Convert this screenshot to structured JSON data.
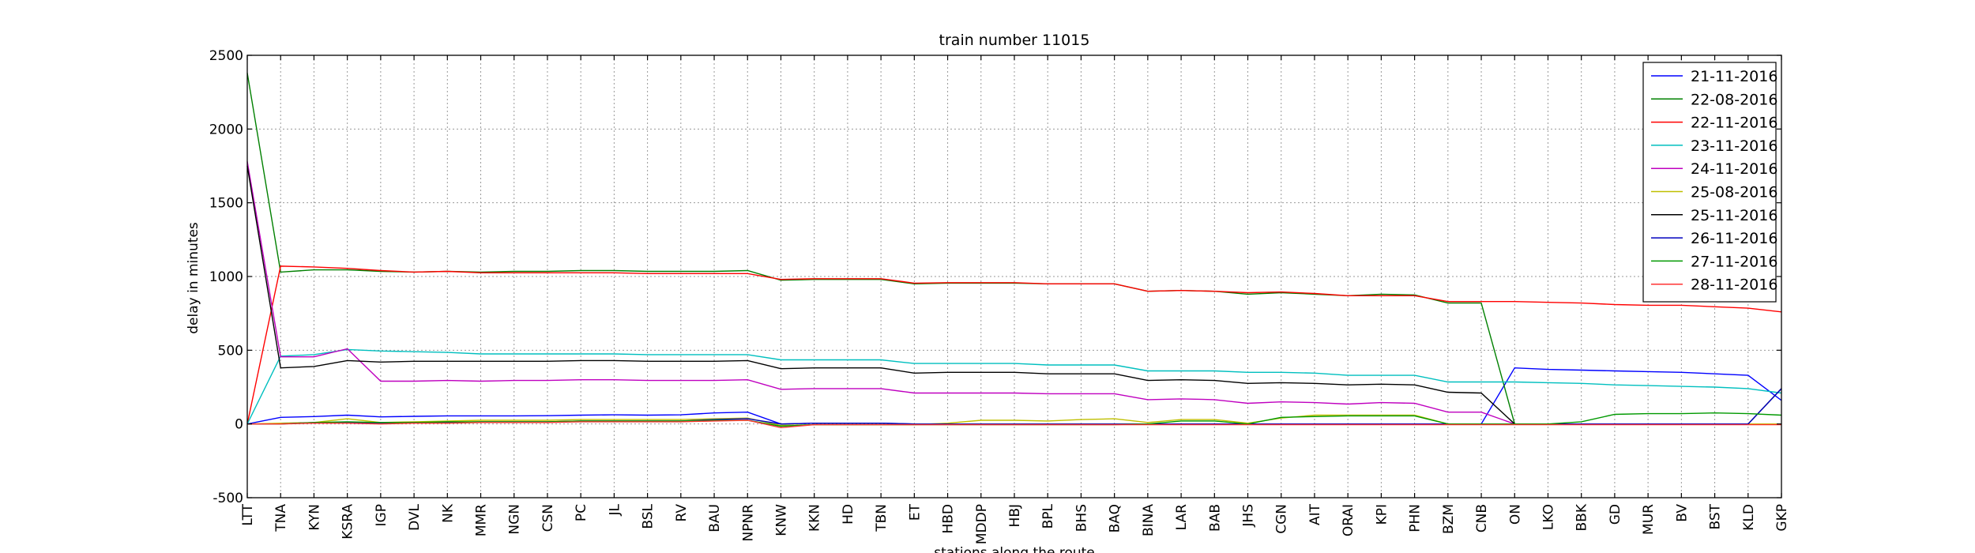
{
  "chart_data": {
    "type": "line",
    "title": "train number 11015",
    "xlabel": "stations along the route",
    "ylabel": "delay in minutes",
    "ylim": [
      -500,
      2500
    ],
    "yticks": [
      -500,
      0,
      500,
      1000,
      1500,
      2000,
      2500
    ],
    "grid": true,
    "legend_position": "top-right",
    "categories": [
      "LTT",
      "TNA",
      "KYN",
      "KSRA",
      "IGP",
      "DVL",
      "NK",
      "MMR",
      "NGN",
      "CSN",
      "PC",
      "JL",
      "BSL",
      "RV",
      "BAU",
      "NPNR",
      "KNW",
      "KKN",
      "HD",
      "TBN",
      "ET",
      "HBD",
      "MDDP",
      "HBJ",
      "BPL",
      "BHS",
      "BAQ",
      "BINA",
      "LAR",
      "BAB",
      "JHS",
      "CGN",
      "AIT",
      "ORAI",
      "KPI",
      "PHN",
      "BZM",
      "CNB",
      "ON",
      "LKO",
      "BBK",
      "GD",
      "MUR",
      "BV",
      "BST",
      "KLD",
      "GKP"
    ],
    "series": [
      {
        "name": "21-11-2016",
        "color": "#0000ff",
        "values": [
          0,
          45,
          50,
          60,
          48,
          52,
          55,
          55,
          55,
          56,
          60,
          62,
          60,
          62,
          75,
          80,
          0,
          5,
          5,
          5,
          0,
          0,
          0,
          0,
          0,
          0,
          0,
          0,
          0,
          0,
          0,
          0,
          0,
          0,
          0,
          0,
          0,
          0,
          380,
          370,
          365,
          360,
          355,
          350,
          340,
          330,
          160
        ]
      },
      {
        "name": "22-08-2016",
        "color": "#008000",
        "values": [
          2380,
          1030,
          1045,
          1045,
          1035,
          1030,
          1035,
          1030,
          1035,
          1035,
          1040,
          1040,
          1035,
          1035,
          1035,
          1040,
          975,
          980,
          980,
          980,
          950,
          955,
          955,
          955,
          950,
          950,
          950,
          900,
          905,
          900,
          880,
          890,
          880,
          870,
          880,
          875,
          820,
          820,
          0,
          0,
          0,
          0,
          0,
          0,
          0,
          0,
          0
        ]
      },
      {
        "name": "22-11-2016",
        "color": "#ff0000",
        "values": [
          0,
          1070,
          1065,
          1055,
          1040,
          1030,
          1035,
          1025,
          1025,
          1025,
          1025,
          1025,
          1020,
          1020,
          1020,
          1020,
          980,
          985,
          985,
          985,
          955,
          958,
          958,
          958,
          950,
          950,
          950,
          900,
          905,
          900,
          890,
          895,
          885,
          870,
          870,
          870,
          830,
          830,
          830,
          825,
          820,
          810,
          805,
          805,
          795,
          785,
          760
        ]
      },
      {
        "name": "23-11-2016",
        "color": "#00bfbf",
        "values": [
          0,
          460,
          470,
          505,
          495,
          490,
          485,
          475,
          475,
          475,
          475,
          475,
          470,
          470,
          470,
          470,
          435,
          435,
          435,
          435,
          410,
          410,
          410,
          410,
          400,
          400,
          400,
          360,
          360,
          360,
          350,
          350,
          345,
          330,
          330,
          330,
          285,
          285,
          285,
          280,
          275,
          265,
          260,
          255,
          250,
          240,
          210
        ]
      },
      {
        "name": "24-11-2016",
        "color": "#bf00bf",
        "values": [
          1780,
          455,
          455,
          510,
          290,
          290,
          295,
          290,
          295,
          295,
          300,
          300,
          295,
          295,
          295,
          300,
          235,
          240,
          240,
          240,
          210,
          210,
          210,
          210,
          205,
          205,
          205,
          165,
          170,
          165,
          140,
          150,
          145,
          135,
          145,
          140,
          80,
          80,
          0,
          0,
          0,
          0,
          0,
          0,
          0,
          0,
          0
        ]
      },
      {
        "name": "25-08-2016",
        "color": "#bfbf00",
        "values": [
          0,
          5,
          10,
          35,
          10,
          15,
          20,
          25,
          25,
          25,
          30,
          30,
          30,
          30,
          35,
          40,
          -10,
          -5,
          -5,
          -5,
          -5,
          5,
          25,
          25,
          20,
          30,
          35,
          10,
          30,
          30,
          5,
          40,
          60,
          60,
          60,
          60,
          0,
          0,
          0,
          0,
          0,
          0,
          0,
          0,
          0,
          0,
          0
        ]
      },
      {
        "name": "25-11-2016",
        "color": "#000000",
        "values": [
          1750,
          380,
          390,
          430,
          420,
          425,
          425,
          425,
          425,
          425,
          430,
          430,
          425,
          425,
          425,
          430,
          375,
          380,
          380,
          380,
          345,
          350,
          350,
          350,
          340,
          340,
          340,
          295,
          300,
          295,
          275,
          280,
          275,
          265,
          270,
          265,
          215,
          210,
          0,
          0,
          0,
          0,
          0,
          0,
          0,
          0,
          240
        ]
      },
      {
        "name": "26-11-2016",
        "color": "#0000bf",
        "values": [
          0,
          0,
          10,
          10,
          5,
          10,
          10,
          15,
          15,
          15,
          20,
          20,
          20,
          20,
          30,
          35,
          0,
          5,
          5,
          5,
          0,
          0,
          0,
          0,
          0,
          0,
          0,
          0,
          0,
          0,
          0,
          0,
          0,
          0,
          0,
          0,
          0,
          0,
          0,
          0,
          0,
          0,
          0,
          0,
          0,
          0,
          240
        ]
      },
      {
        "name": "27-11-2016",
        "color": "#009900",
        "values": [
          0,
          0,
          10,
          15,
          10,
          10,
          15,
          15,
          15,
          15,
          20,
          20,
          20,
          20,
          25,
          25,
          -15,
          -5,
          -5,
          -5,
          -5,
          -5,
          -5,
          -5,
          -5,
          -5,
          -5,
          0,
          20,
          20,
          0,
          45,
          50,
          55,
          55,
          55,
          0,
          0,
          0,
          0,
          15,
          65,
          70,
          70,
          75,
          70,
          60
        ]
      },
      {
        "name": "28-11-2016",
        "color": "#ff3333",
        "values": [
          0,
          0,
          5,
          5,
          0,
          5,
          5,
          10,
          10,
          10,
          15,
          15,
          15,
          15,
          20,
          25,
          -25,
          -5,
          -5,
          -5,
          -5,
          -5,
          -5,
          -5,
          -5,
          -5,
          -5,
          -5,
          -5,
          -5,
          -5,
          -5,
          -5,
          -5,
          -5,
          -5,
          -5,
          -5,
          -5,
          -5,
          -5,
          -5,
          -5,
          -5,
          -5,
          -5,
          -5
        ]
      }
    ]
  }
}
